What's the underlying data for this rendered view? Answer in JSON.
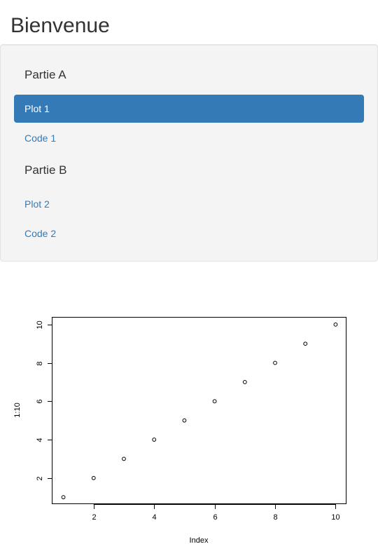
{
  "page": {
    "title": "Bienvenue"
  },
  "sidebar": {
    "sections": [
      {
        "header": "Partie A",
        "items": [
          {
            "label": "Plot 1",
            "active": true
          },
          {
            "label": "Code 1",
            "active": false
          }
        ]
      },
      {
        "header": "Partie B",
        "items": [
          {
            "label": "Plot 2",
            "active": false
          },
          {
            "label": "Code 2",
            "active": false
          }
        ]
      }
    ]
  },
  "colors": {
    "accent": "#337ab7",
    "link": "#337ab7",
    "sidebar_bg": "#f4f4f4"
  },
  "chart_data": {
    "type": "scatter",
    "x": [
      1,
      2,
      3,
      4,
      5,
      6,
      7,
      8,
      9,
      10
    ],
    "y": [
      1,
      2,
      3,
      4,
      5,
      6,
      7,
      8,
      9,
      10
    ],
    "xlabel": "Index",
    "ylabel": "1:10",
    "xlim": [
      0.64,
      10.36
    ],
    "ylim": [
      0.64,
      10.36
    ],
    "xticks": [
      2,
      4,
      6,
      8,
      10
    ],
    "yticks": [
      2,
      4,
      6,
      8,
      10
    ],
    "grid": false,
    "marker": "open-circle"
  }
}
